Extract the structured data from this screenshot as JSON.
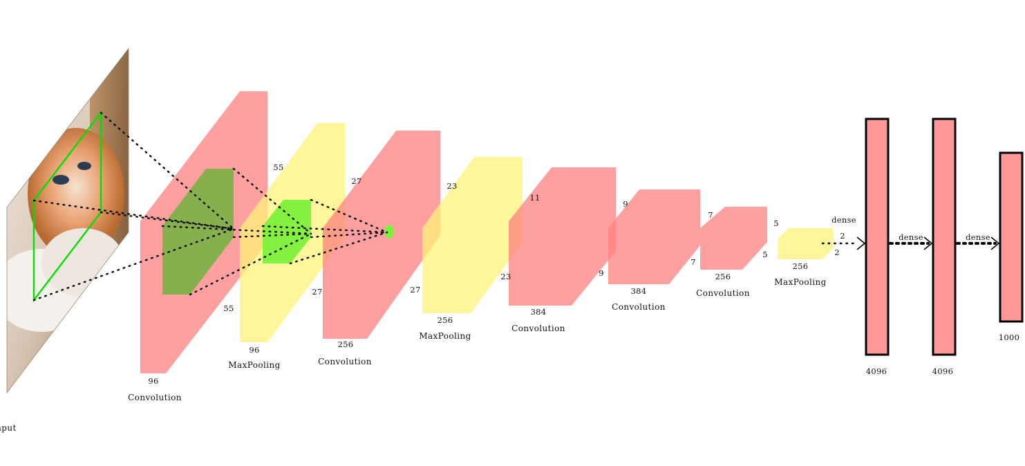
{
  "input": {
    "label": "Input"
  },
  "layers": [
    {
      "id": "conv1",
      "caption": "Convolution",
      "depth": "96",
      "h": "55",
      "w": "55"
    },
    {
      "id": "pool1",
      "caption": "MaxPooling",
      "depth": "96",
      "h": "27",
      "w": "27"
    },
    {
      "id": "conv2",
      "caption": "Convolution",
      "depth": "256",
      "h": "27"
    },
    {
      "id": "pool2",
      "caption": "MaxPooling",
      "depth": "256",
      "h": "23",
      "w": "23"
    },
    {
      "id": "conv3",
      "caption": "Convolution",
      "depth": "384",
      "h": "11",
      "w": "11"
    },
    {
      "id": "conv4",
      "caption": "Convolution",
      "depth": "384",
      "h": "9",
      "w": "9"
    },
    {
      "id": "conv5",
      "caption": "Convolution",
      "depth": "256",
      "h": "7",
      "w": "7"
    },
    {
      "id": "pool3",
      "caption": "MaxPooling",
      "depth": "256",
      "h": "5",
      "w": "5"
    }
  ],
  "pool3_out": {
    "top": "2",
    "bottom": "2"
  },
  "dense": [
    {
      "edge_label": "dense",
      "units": "4096"
    },
    {
      "edge_label": "dense",
      "units": "4096"
    },
    {
      "edge_label": "dense",
      "units": "1000"
    }
  ],
  "colors": {
    "conv": "#ff8080",
    "pool": "#fff27a",
    "kernel_dark": "#7fb04a",
    "kernel_light": "#7cf03a",
    "outline": "#00e000",
    "dense_fill": "#ff9999",
    "dense_border": "#000000"
  }
}
